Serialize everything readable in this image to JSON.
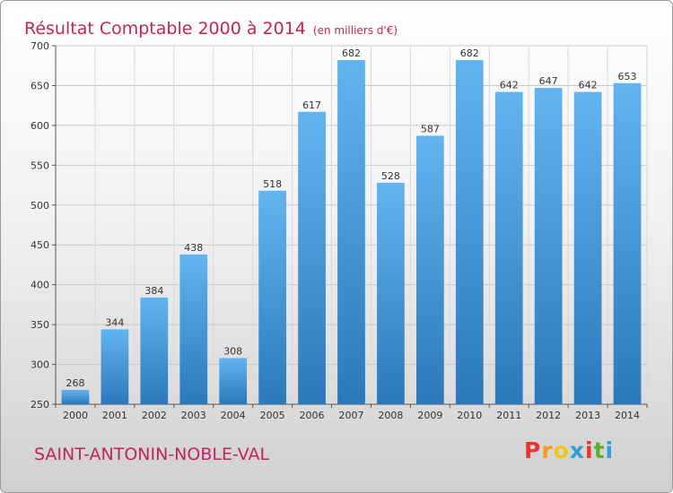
{
  "page": {
    "title": "Résultat Comptable 2000 à 2014",
    "unit_note": "(en milliers d'€)",
    "commune": "SAINT-ANTONIN-NOBLE-VAL",
    "brand": "Proxiti"
  },
  "colors": {
    "title": "#c0245f",
    "bar_top": "#62b4ef",
    "bar_bottom": "#2b79bb",
    "brand_letters": [
      "#e8362d",
      "#f39a1f",
      "#f0c419",
      "#2e9fd8",
      "#e8362d",
      "#5bb031",
      "#2e9fd8"
    ]
  },
  "chart_data": {
    "type": "bar",
    "title": "Résultat Comptable 2000 à 2014",
    "xlabel": "",
    "ylabel": "",
    "categories": [
      "2000",
      "2001",
      "2002",
      "2003",
      "2004",
      "2005",
      "2006",
      "2007",
      "2008",
      "2009",
      "2010",
      "2011",
      "2012",
      "2013",
      "2014"
    ],
    "values": [
      268,
      344,
      384,
      438,
      308,
      518,
      617,
      682,
      528,
      587,
      682,
      642,
      647,
      642,
      653
    ],
    "ylim": [
      250,
      700
    ],
    "yticks": [
      250,
      300,
      350,
      400,
      450,
      500,
      550,
      600,
      650,
      700
    ],
    "grid": true,
    "data_labels": true,
    "legend": "none"
  }
}
